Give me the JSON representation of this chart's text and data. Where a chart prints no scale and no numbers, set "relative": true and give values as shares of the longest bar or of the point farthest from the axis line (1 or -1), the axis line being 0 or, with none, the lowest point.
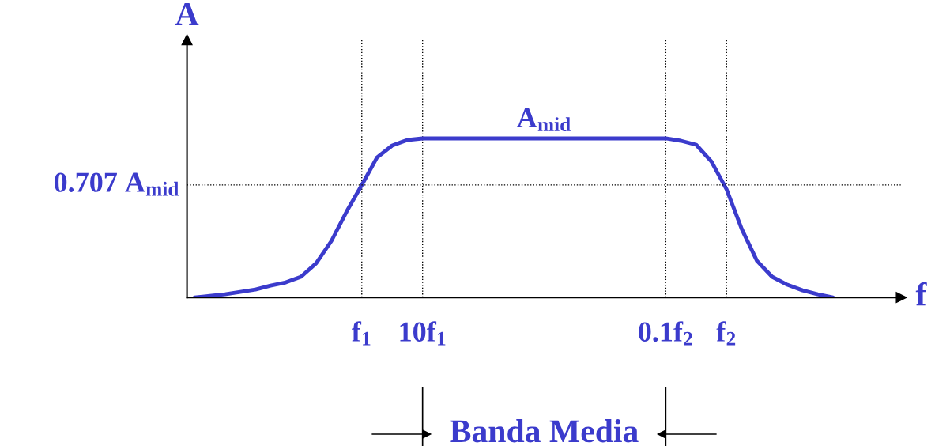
{
  "chart_data": {
    "type": "line",
    "relative": true,
    "xlabel": "f",
    "ylabel": "A",
    "categories": [
      null,
      null,
      null,
      null,
      null,
      null,
      null,
      null,
      null,
      null,
      null,
      "f$_{1}$",
      null,
      null,
      null,
      "10f$_{1}$",
      null,
      null,
      null,
      null,
      null,
      null,
      null,
      null,
      null,
      null,
      null,
      null,
      null,
      null,
      null,
      "0.1f$_{2}$",
      null,
      null,
      null,
      "f$_{2}$",
      null,
      null,
      null,
      null,
      null,
      null,
      null
    ],
    "series": [
      {
        "color": "#3b3bcc",
        "values": [
          0,
          0.01,
          0.02,
          0.035,
          0.05,
          0.075,
          0.095,
          0.13,
          0.215,
          0.355,
          0.54,
          0.707,
          0.88,
          0.955,
          0.99,
          1,
          1,
          1,
          1,
          1,
          1,
          1,
          1,
          1,
          1,
          1,
          1,
          1,
          1,
          1,
          1,
          1,
          0.985,
          0.96,
          0.855,
          0.68,
          0.43,
          0.23,
          0.13,
          0.08,
          0.045,
          0.02,
          0
        ]
      }
    ],
    "ref_lines": [
      {
        "axis": "y",
        "value": 0.707,
        "label": "0.707 A$_{mid}$",
        "color": "#000000",
        "line_style": "dotted"
      }
    ],
    "annotations": [
      "A$_{mid}$",
      "Banda Media"
    ],
    "grid": "x",
    "marker": "none",
    "line_style": "solid"
  }
}
